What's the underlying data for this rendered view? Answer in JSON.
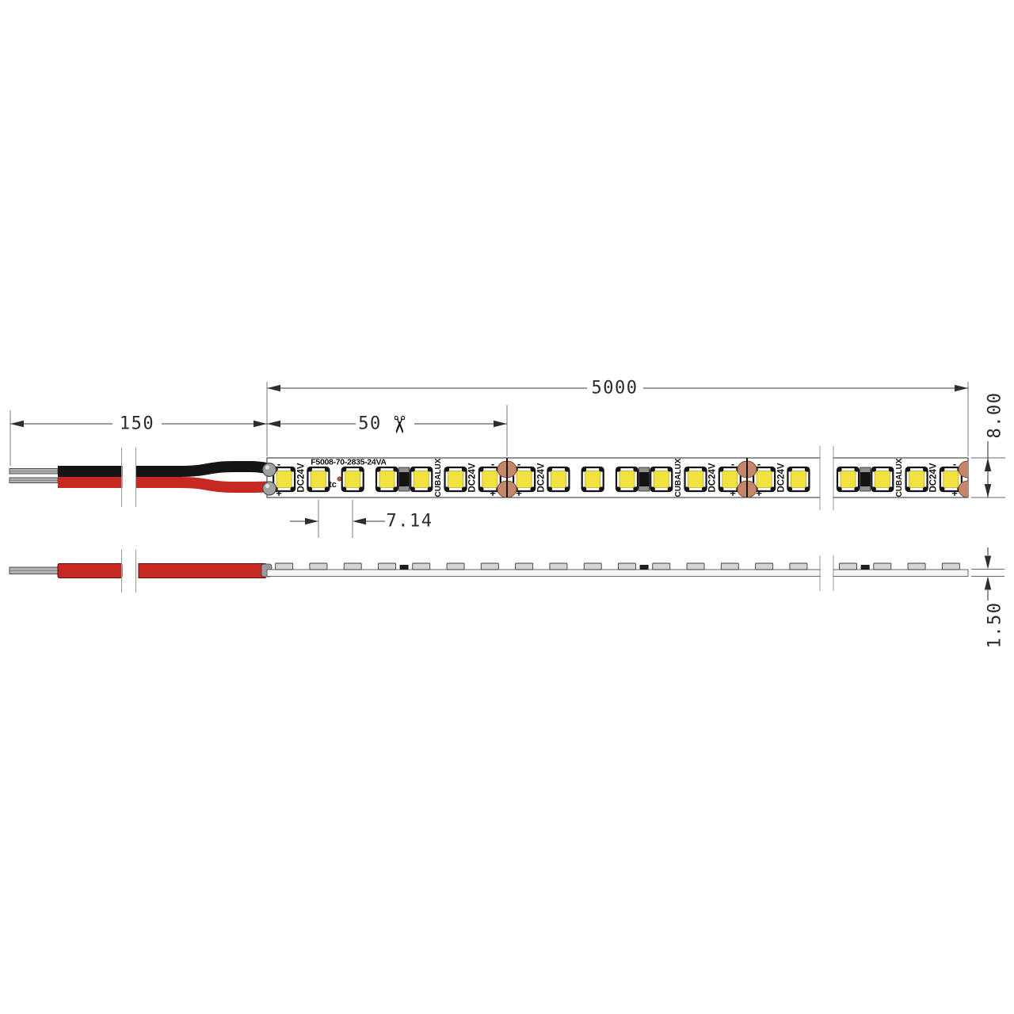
{
  "product": {
    "model_label": "F5008-70-2835-24VA",
    "brand": "CUBALUX",
    "voltage": "DC24V",
    "tc_label": "tc",
    "polarity_plus": "+",
    "polarity_minus": "-"
  },
  "dimensions": {
    "total_length": "5000",
    "lead_wire_length": "150",
    "cut_unit_length": "50",
    "led_pitch": "7.14",
    "strip_width": "8.00",
    "strip_thickness": "1.50"
  },
  "icons": {
    "scissors": "✂"
  },
  "colors": {
    "led_yellow": "#f1e23f",
    "led_outline": "#141414",
    "copper_pad": "#c5876c",
    "copper_pad_edge": "#7c4b37",
    "wire_red": "#c62822",
    "wire_red_edge": "#550d0b",
    "wire_black": "#141414",
    "solder_gray": "#a2a2a2",
    "pcb_white": "#ffffff",
    "dimension_ink": "#2e2e2e"
  }
}
